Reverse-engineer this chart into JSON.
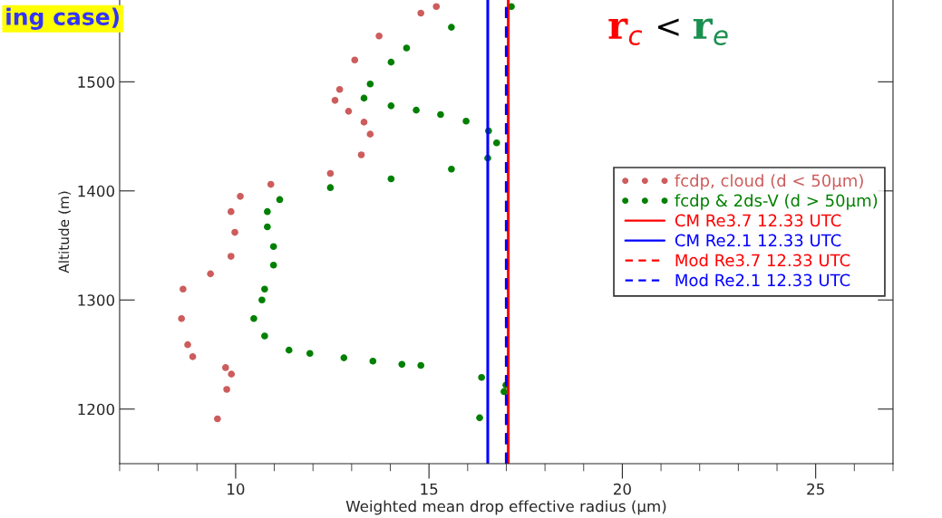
{
  "chart_data": {
    "type": "scatter",
    "xlabel": "Weighted mean drop effective radius (μm)",
    "ylabel": "Altitude (m)",
    "annotations": [
      "ing case)",
      "r$_{c}$",
      "<",
      "r$_{e}$"
    ],
    "xlim": [
      7,
      27
    ],
    "xticks": [
      10,
      15,
      20,
      25
    ],
    "ylim": [
      1150,
      1575
    ],
    "yticks": [
      1200,
      1300,
      1400,
      1500
    ],
    "grid": false,
    "legend": "right",
    "marker": "circle",
    "series": [
      {
        "name": "fcdp, cloud (d < 50μm)",
        "color": "#cd5c5c",
        "x": [
          9.53,
          9.77,
          9.89,
          9.74,
          8.89,
          8.76,
          8.6,
          8.64,
          9.35,
          9.88,
          9.98,
          9.88,
          10.12,
          10.91,
          12.45,
          13.25,
          13.48,
          13.32,
          12.92,
          12.57,
          12.69,
          13.08,
          13.71,
          14.79,
          15.19
        ],
        "values": [
          1191,
          1218,
          1232,
          1238,
          1248,
          1259,
          1283,
          1310,
          1324,
          1340,
          1362,
          1381,
          1395,
          1406,
          1416,
          1433,
          1452,
          1463,
          1473,
          1483,
          1493,
          1520,
          1542,
          1563,
          1569
        ]
      },
      {
        "name": "fcdp & 2ds-V (d > 50μm)",
        "color": "#008000",
        "x": [
          16.31,
          16.94,
          16.99,
          16.36,
          14.79,
          14.3,
          13.55,
          12.8,
          11.92,
          11.38,
          10.75,
          10.47,
          10.68,
          10.75,
          10.98,
          10.98,
          10.82,
          10.82,
          11.14,
          12.45,
          14.02,
          15.58,
          16.52,
          16.75,
          16.54,
          15.96,
          15.3,
          14.67,
          14.02,
          13.32,
          13.48,
          14.02,
          14.42,
          15.58,
          17.13
        ],
        "values": [
          1192,
          1216,
          1222,
          1229,
          1240,
          1241,
          1244,
          1247,
          1251,
          1254,
          1267,
          1283,
          1300,
          1310,
          1332,
          1349,
          1367,
          1381,
          1392,
          1403,
          1411,
          1420,
          1430,
          1444,
          1455,
          1464,
          1470,
          1474,
          1478,
          1485,
          1498,
          1518,
          1531,
          1550,
          1569
        ]
      }
    ],
    "ref_lines": [
      {
        "axis": "x",
        "value": 17.05,
        "label": "CM Re3.7 12.33 UTC",
        "color": "#ff0000",
        "line_style": "solid"
      },
      {
        "axis": "x",
        "value": 16.52,
        "label": "CM Re2.1 12.33 UTC",
        "color": "#0000ff",
        "line_style": "solid"
      },
      {
        "axis": "x",
        "value": 17.0,
        "label": "Mod Re3.7 12.33 UTC",
        "color": "#ff0000",
        "line_style": "dashed"
      },
      {
        "axis": "x",
        "value": 17.0,
        "label": "Mod Re2.1 12.33 UTC",
        "color": "#0000ff",
        "line_style": "dashed"
      }
    ]
  }
}
